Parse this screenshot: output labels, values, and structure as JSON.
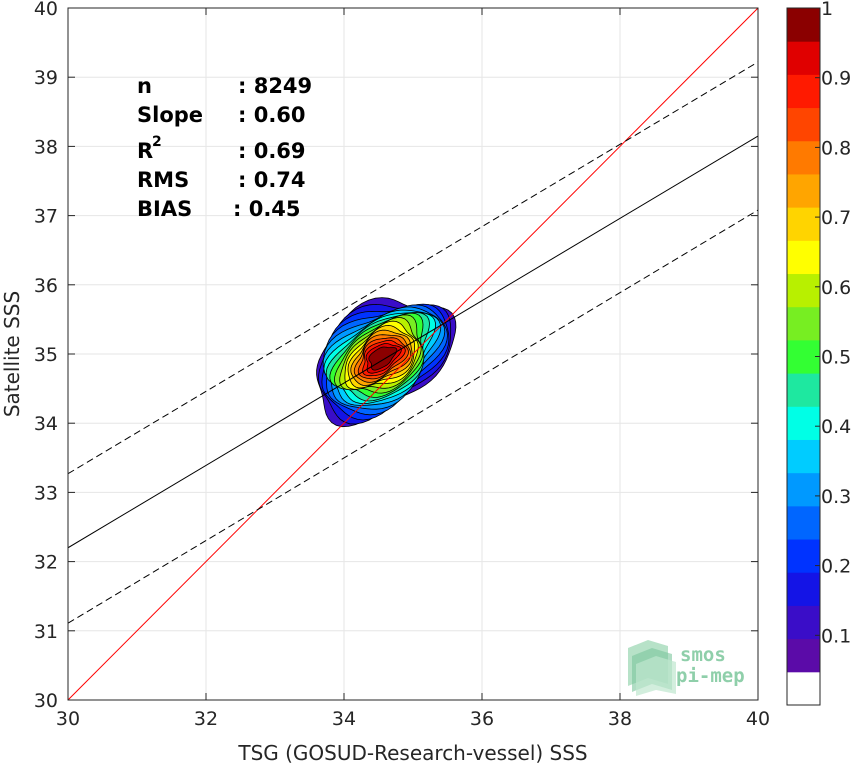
{
  "chart_data": {
    "type": "heatmap",
    "xlabel": "TSG (GOSUD-Research-vessel) SSS",
    "ylabel": "Satellite SSS",
    "xlim": [
      30,
      40
    ],
    "ylim": [
      30,
      40
    ],
    "xticks": [
      30,
      32,
      34,
      36,
      38,
      40
    ],
    "yticks": [
      30,
      31,
      32,
      33,
      34,
      35,
      36,
      37,
      38,
      39,
      40
    ],
    "grid": true,
    "stats": [
      {
        "name": "n",
        "value": ": 8249"
      },
      {
        "name": "Slope",
        "value": ": 0.60"
      },
      {
        "name": "R",
        "sup": "2",
        "value": ": 0.69"
      },
      {
        "name": "RMS",
        "value": ": 0.74"
      },
      {
        "name": "BIAS",
        "value": ": 0.45"
      }
    ],
    "lines": [
      {
        "kind": "one-to-one",
        "color": "#ff0000",
        "style": "solid",
        "points": [
          [
            30,
            30
          ],
          [
            40,
            40
          ]
        ]
      },
      {
        "kind": "regression",
        "color": "#000000",
        "style": "solid",
        "points": [
          [
            30,
            32.2
          ],
          [
            40,
            38.15
          ]
        ]
      },
      {
        "kind": "regression-upper",
        "color": "#000000",
        "style": "dashed",
        "points": [
          [
            30,
            33.27
          ],
          [
            40,
            39.22
          ]
        ]
      },
      {
        "kind": "regression-lower",
        "color": "#000000",
        "style": "dashed",
        "points": [
          [
            30,
            31.11
          ],
          [
            40,
            37.08
          ]
        ]
      }
    ],
    "density_center": [
      34.55,
      34.95
    ],
    "contour_levels": [
      0.05,
      0.1,
      0.15,
      0.2,
      0.25,
      0.3,
      0.35,
      0.4,
      0.45,
      0.5,
      0.55,
      0.6,
      0.65,
      0.7,
      0.75,
      0.8,
      0.85,
      0.9,
      0.95
    ],
    "colorbar": {
      "range": [
        0,
        1
      ],
      "ticks": [
        "0.1",
        "0.2",
        "0.3",
        "0.4",
        "0.5",
        "0.6",
        "0.7",
        "0.8",
        "0.9",
        "1"
      ],
      "colors": [
        "#ffffff",
        "#5b0ba8",
        "#3a0dc8",
        "#1414e6",
        "#0033ff",
        "#0066ff",
        "#0099ff",
        "#00ccff",
        "#00ffe6",
        "#1ee8a0",
        "#33ff33",
        "#77ee22",
        "#b8f000",
        "#ffff00",
        "#ffd400",
        "#ffa500",
        "#ff7a00",
        "#ff4500",
        "#ff1a00",
        "#e00000",
        "#8b0000"
      ]
    }
  },
  "logo": {
    "line1": "smos",
    "line2": "pi-mep"
  }
}
